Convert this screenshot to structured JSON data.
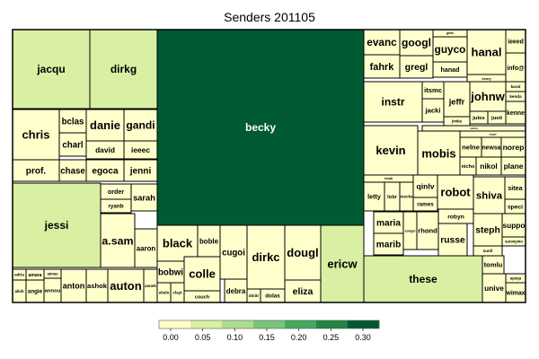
{
  "chart_data": {
    "type": "treemap",
    "title": "Senders 201105",
    "legend": {
      "position": "bottom",
      "tick_labels": [
        "0.00",
        "0.05",
        "0.10",
        "0.15",
        "0.20",
        "0.25",
        "0.30"
      ],
      "colors": [
        "#ffffcc",
        "#d9f0a3",
        "#addd8e",
        "#78c679",
        "#41ab5d",
        "#238443",
        "#005a32"
      ]
    },
    "leaves": [
      {
        "label": "jacqu",
        "value": 0.03
      },
      {
        "label": "dirkg",
        "value": 0.03
      },
      {
        "label": "chris",
        "value": 0.02
      },
      {
        "label": "bclas",
        "value": 0.01
      },
      {
        "label": "danie",
        "value": 0.01
      },
      {
        "label": "gandi",
        "value": 0.02
      },
      {
        "label": "charl",
        "value": 0.01
      },
      {
        "label": "david",
        "value": 0.01
      },
      {
        "label": "ieeec",
        "value": 0.01
      },
      {
        "label": "prof.",
        "value": 0.01
      },
      {
        "label": "chase",
        "value": 0.01
      },
      {
        "label": "egoca",
        "value": 0.01
      },
      {
        "label": "jenni",
        "value": 0.01
      },
      {
        "label": "order",
        "value": 0.01
      },
      {
        "label": "sarah",
        "value": 0.01
      },
      {
        "label": "ryanb",
        "value": 0.01
      },
      {
        "label": "jessi",
        "value": 0.05
      },
      {
        "label": "a.sam",
        "value": 0.02
      },
      {
        "label": "aaron",
        "value": 0.01
      },
      {
        "label": "adria",
        "value": 0.0
      },
      {
        "label": "amara",
        "value": 0.0
      },
      {
        "label": "annas",
        "value": 0.0
      },
      {
        "label": "alish",
        "value": 0.0
      },
      {
        "label": "angie",
        "value": 0.0
      },
      {
        "label": "annou",
        "value": 0.0
      },
      {
        "label": "anton",
        "value": 0.01
      },
      {
        "label": "ashok",
        "value": 0.01
      },
      {
        "label": "auton",
        "value": 0.01
      },
      {
        "label": "avnek",
        "value": 0.0
      },
      {
        "label": "becky",
        "value": 0.31
      },
      {
        "label": "black",
        "value": 0.01
      },
      {
        "label": "boble",
        "value": 0.0
      },
      {
        "label": "bobwi",
        "value": 0.0
      },
      {
        "label": "colle",
        "value": 0.01
      },
      {
        "label": "shelo",
        "value": 0.0
      },
      {
        "label": "clayt",
        "value": 0.0
      },
      {
        "label": "couch",
        "value": 0.01
      },
      {
        "label": "cugoi",
        "value": 0.01
      },
      {
        "label": "debra",
        "value": 0.0
      },
      {
        "label": "dirkc",
        "value": 0.01
      },
      {
        "label": "dmitr",
        "value": 0.0
      },
      {
        "label": "dolas",
        "value": 0.01
      },
      {
        "label": "dougl",
        "value": 0.01
      },
      {
        "label": "eliza",
        "value": 0.01
      },
      {
        "label": "ericw",
        "value": 0.03
      },
      {
        "label": "evanc",
        "value": 0.01
      },
      {
        "label": "googl",
        "value": 0.01
      },
      {
        "label": "gretc",
        "value": 0.0
      },
      {
        "label": "guyco",
        "value": 0.01
      },
      {
        "label": "hanal",
        "value": 0.01
      },
      {
        "label": "ieeed",
        "value": 0.0
      },
      {
        "label": "fahrk",
        "value": 0.01
      },
      {
        "label": "gregl",
        "value": 0.0
      },
      {
        "label": "hanad",
        "value": 0.01
      },
      {
        "label": "info@",
        "value": 0.0
      },
      {
        "label": "henry",
        "value": 0.0
      },
      {
        "label": "instr",
        "value": 0.02
      },
      {
        "label": "itsmc",
        "value": 0.0
      },
      {
        "label": "jacki",
        "value": 0.0
      },
      {
        "label": "jeffr",
        "value": 0.01
      },
      {
        "label": "johnw",
        "value": 0.01
      },
      {
        "label": "karal",
        "value": 0.0
      },
      {
        "label": "kenda",
        "value": 0.0
      },
      {
        "label": "kenne",
        "value": 0.0
      },
      {
        "label": "jimba",
        "value": 0.0
      },
      {
        "label": "jules",
        "value": 0.0
      },
      {
        "label": "justi",
        "value": 0.0
      },
      {
        "label": "micha",
        "value": 0.0
      },
      {
        "label": "kevin",
        "value": 0.02
      },
      {
        "label": "mobis",
        "value": 0.02
      },
      {
        "label": "nagal",
        "value": 0.0
      },
      {
        "label": "nelne",
        "value": 0.0
      },
      {
        "label": "newsa",
        "value": 0.0
      },
      {
        "label": "norep",
        "value": 0.0
      },
      {
        "label": "nicho",
        "value": 0.0
      },
      {
        "label": "nikol",
        "value": 0.01
      },
      {
        "label": "plane",
        "value": 0.0
      },
      {
        "label": "lenab",
        "value": 0.0
      },
      {
        "label": "letty",
        "value": 0.01
      },
      {
        "label": "lizbr",
        "value": 0.0
      },
      {
        "label": "mecke",
        "value": 0.0
      },
      {
        "label": "qinlv",
        "value": 0.01
      },
      {
        "label": "rames",
        "value": 0.0
      },
      {
        "label": "robot",
        "value": 0.01
      },
      {
        "label": "shiva",
        "value": 0.01
      },
      {
        "label": "sitea",
        "value": 0.0
      },
      {
        "label": "speci",
        "value": 0.0
      },
      {
        "label": "maria",
        "value": 0.01
      },
      {
        "label": "songel",
        "value": 0.0
      },
      {
        "label": "rhond",
        "value": 0.0
      },
      {
        "label": "robyn",
        "value": 0.01
      },
      {
        "label": "russe",
        "value": 0.01
      },
      {
        "label": "steph",
        "value": 0.01
      },
      {
        "label": "suppo",
        "value": 0.0
      },
      {
        "label": "marib",
        "value": 0.01
      },
      {
        "label": "surveymo",
        "value": 0.0
      },
      {
        "label": "sunil",
        "value": 0.0
      },
      {
        "label": "these",
        "value": 0.04
      },
      {
        "label": "tomlu",
        "value": 0.0
      },
      {
        "label": "upsqu",
        "value": 0.0
      },
      {
        "label": "unive",
        "value": 0.0
      },
      {
        "label": "wimax",
        "value": 0.0
      }
    ]
  }
}
